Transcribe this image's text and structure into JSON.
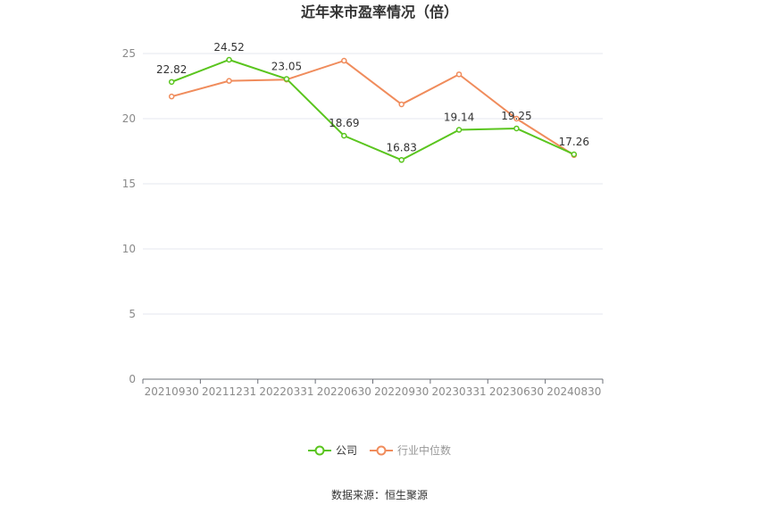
{
  "chart_data": {
    "type": "line",
    "title": "近年来市盈率情况（倍）",
    "categories": [
      "20210930",
      "20211231",
      "20220331",
      "20220630",
      "20220930",
      "20230331",
      "20230630",
      "20240830"
    ],
    "series": [
      {
        "name": "公司",
        "color": "#5ac51e",
        "values": [
          22.82,
          24.52,
          23.05,
          18.69,
          16.83,
          19.14,
          19.25,
          17.26
        ],
        "data_labels": [
          "22.82",
          "24.52",
          "23.05",
          "18.69",
          "16.83",
          "19.14",
          "19.25",
          "17.26"
        ]
      },
      {
        "name": "行业中位数",
        "color": "#f08c5c",
        "values": [
          21.7,
          22.9,
          23.0,
          24.45,
          21.1,
          23.4,
          20.0,
          17.2
        ]
      }
    ],
    "ylim": [
      0,
      25
    ],
    "yticks": [
      "0",
      "5",
      "10",
      "15",
      "20",
      "25"
    ],
    "grid": true,
    "legend_position": "bottom"
  },
  "source": "数据来源：恒生聚源"
}
